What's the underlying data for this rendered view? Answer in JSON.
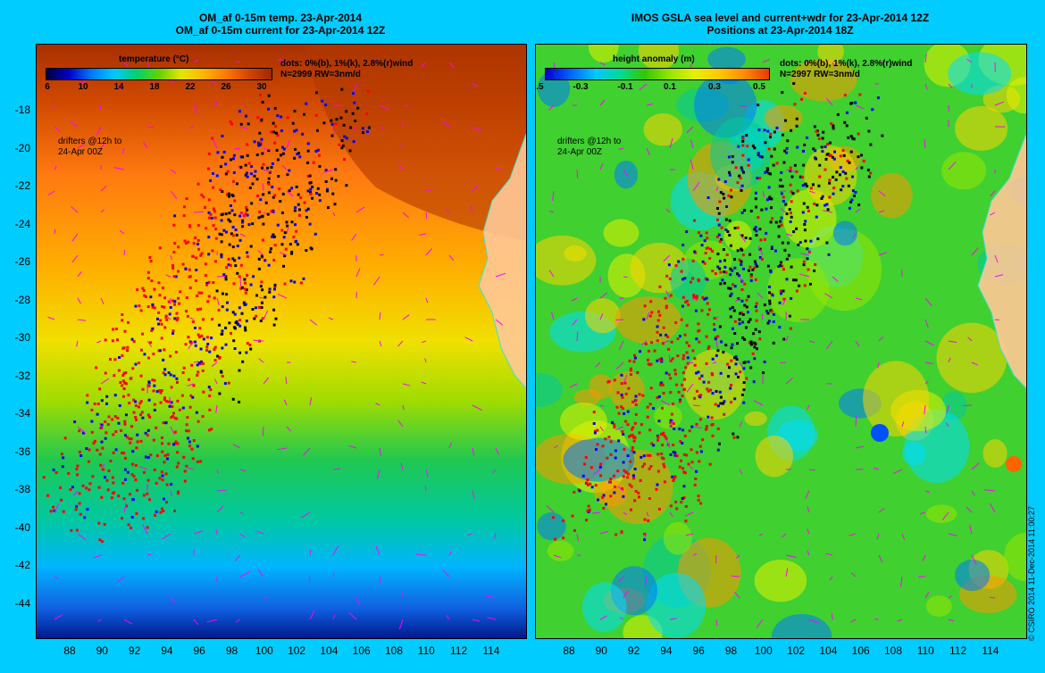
{
  "left": {
    "title_line1": "OM_af 0-15m temp. 23-Apr-2014",
    "title_line2": "OM_af 0-15m current for 23-Apr-2014 12Z",
    "colorbar_title": "temperature (°C)",
    "colorbar_ticks": [
      "6",
      "10",
      "14",
      "18",
      "22",
      "26",
      "30"
    ],
    "dots_note_line1": "dots: 0%(b), 1%(k), 2.8%(r)wind",
    "dots_note_line2": "N=2999 RW=3nm/d",
    "drifters_line1": "drifters @12h to",
    "drifters_line2": "24-Apr 00Z",
    "colors": [
      "#00003c",
      "#0000c8",
      "#0078ff",
      "#00c8ff",
      "#00d26e",
      "#64d200",
      "#e6e600",
      "#ffb400",
      "#ff7800",
      "#d24600",
      "#a02800"
    ]
  },
  "right": {
    "title_line1": "IMOS GSLA sea level and current+wdr for 23-Apr-2014 12Z",
    "title_line2": "Positions at 23-Apr-2014 18Z",
    "colorbar_title": "height anomaly (m)",
    "colorbar_ticks": [
      "-0.5",
      "-0.3",
      "-0.1",
      "0.1",
      "0.3",
      "0.5"
    ],
    "dots_note_line1": "dots: 0%(b), 1%(k), 2.8%(r)wind",
    "dots_note_line2": "N=2997 RW=3nm/d",
    "drifters_line1": "drifters @12h to",
    "drifters_line2": "24-Apr 00Z",
    "colors": [
      "#0000c8",
      "#0064ff",
      "#00c8ff",
      "#00dc96",
      "#32c800",
      "#96e600",
      "#e6f000",
      "#ffc800",
      "#ff8c00",
      "#e63c00"
    ]
  },
  "y_ticks": [
    "-18",
    "-20",
    "-22",
    "-24",
    "-26",
    "-28",
    "-30",
    "-32",
    "-34",
    "-36",
    "-38",
    "-40",
    "-42",
    "-44"
  ],
  "x_ticks": [
    "88",
    "90",
    "92",
    "94",
    "96",
    "98",
    "100",
    "102",
    "104",
    "106",
    "108",
    "110",
    "112",
    "114"
  ],
  "credit": "© CSIRO 2014   11-Dec-2014 11:00:27",
  "palette": {
    "land": "#ffc896",
    "coast": "#40e0d0",
    "dot_blue": "#0000ff",
    "dot_black": "#000000",
    "dot_red": "#ff0000",
    "arrow": "#ff00ff"
  }
}
